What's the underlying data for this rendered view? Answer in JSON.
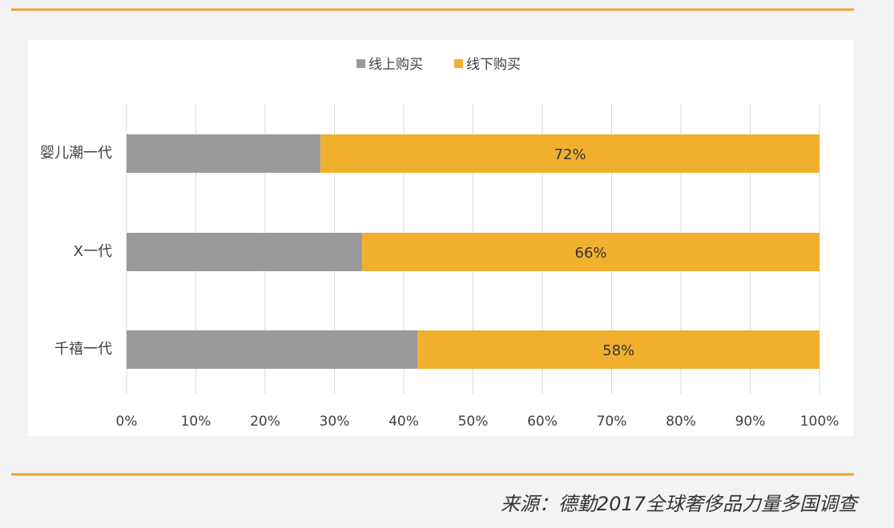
{
  "chart_data": {
    "type": "stacked-barh",
    "categories": [
      "婴儿潮一代",
      "X一代",
      "千禧一代"
    ],
    "series": [
      {
        "name": "线上购买",
        "color": "#9a9a9a",
        "values": [
          28,
          34,
          42
        ]
      },
      {
        "name": "线下购买",
        "color": "#f0b02e",
        "values": [
          72,
          66,
          58
        ],
        "value_labels": [
          "72%",
          "66%",
          "58%"
        ]
      }
    ],
    "xlim": [
      0,
      100
    ],
    "xticks": [
      {
        "value": 0,
        "label": "0%"
      },
      {
        "value": 10,
        "label": "10%"
      },
      {
        "value": 20,
        "label": "20%"
      },
      {
        "value": 30,
        "label": "30%"
      },
      {
        "value": 40,
        "label": "40%"
      },
      {
        "value": 50,
        "label": "50%"
      },
      {
        "value": 60,
        "label": "60%"
      },
      {
        "value": 70,
        "label": "70%"
      },
      {
        "value": 80,
        "label": "80%"
      },
      {
        "value": 90,
        "label": "90%"
      },
      {
        "value": 100,
        "label": "100%"
      }
    ],
    "grid": true,
    "legend": "top",
    "source": "来源：德勤2017全球奢侈品力量多国调查"
  }
}
